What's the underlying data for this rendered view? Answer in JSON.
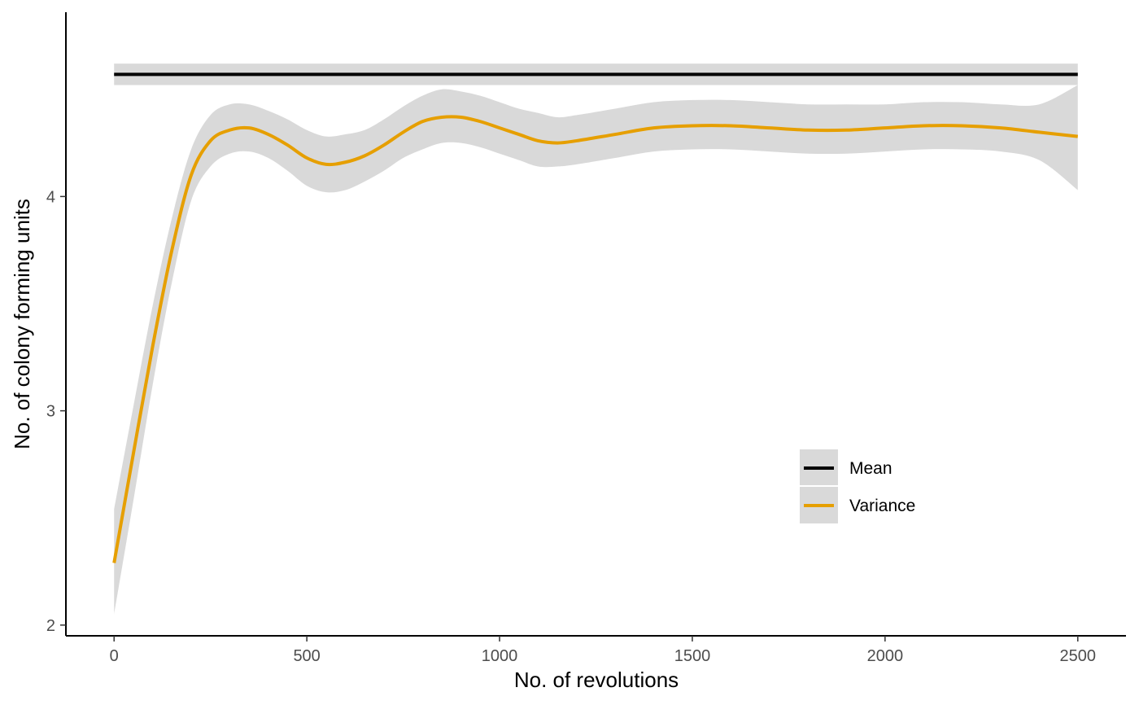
{
  "chart_data": {
    "type": "line",
    "xlabel": "No. of revolutions",
    "ylabel": "No. of colony forming units",
    "xlim": [
      -125,
      2625
    ],
    "ylim": [
      1.95,
      4.86
    ],
    "x_ticks": [
      0,
      500,
      1000,
      1500,
      2000,
      2500
    ],
    "y_ticks": [
      2,
      3,
      4
    ],
    "grid": false,
    "legend_position": "bottom-right",
    "series": [
      {
        "name": "Mean",
        "color": "#000000",
        "x": [
          0,
          2500
        ],
        "y": [
          4.57,
          4.57
        ],
        "ci_lower": [
          4.52,
          4.52
        ],
        "ci_upper": [
          4.62,
          4.62
        ]
      },
      {
        "name": "Variance",
        "color": "#E69F00",
        "x": [
          0,
          50,
          100,
          150,
          200,
          250,
          300,
          350,
          400,
          450,
          500,
          550,
          600,
          650,
          700,
          750,
          800,
          850,
          900,
          950,
          1000,
          1050,
          1100,
          1150,
          1200,
          1300,
          1400,
          1500,
          1600,
          1700,
          1800,
          1900,
          2000,
          2100,
          2200,
          2300,
          2400,
          2500
        ],
        "y": [
          2.29,
          2.8,
          3.3,
          3.75,
          4.1,
          4.26,
          4.31,
          4.32,
          4.29,
          4.24,
          4.18,
          4.15,
          4.16,
          4.19,
          4.24,
          4.3,
          4.35,
          4.37,
          4.37,
          4.35,
          4.32,
          4.29,
          4.26,
          4.25,
          4.26,
          4.29,
          4.32,
          4.33,
          4.33,
          4.32,
          4.31,
          4.31,
          4.32,
          4.33,
          4.33,
          4.32,
          4.3,
          4.28
        ],
        "ci_lower": [
          2.05,
          2.58,
          3.12,
          3.6,
          3.98,
          4.14,
          4.2,
          4.21,
          4.18,
          4.12,
          4.05,
          4.02,
          4.03,
          4.07,
          4.12,
          4.18,
          4.22,
          4.25,
          4.25,
          4.23,
          4.2,
          4.17,
          4.14,
          4.14,
          4.15,
          4.18,
          4.21,
          4.22,
          4.22,
          4.21,
          4.2,
          4.2,
          4.21,
          4.22,
          4.22,
          4.21,
          4.17,
          4.03
        ],
        "ci_upper": [
          2.54,
          3.02,
          3.49,
          3.9,
          4.22,
          4.38,
          4.43,
          4.43,
          4.4,
          4.36,
          4.31,
          4.28,
          4.29,
          4.31,
          4.36,
          4.42,
          4.47,
          4.5,
          4.49,
          4.47,
          4.44,
          4.41,
          4.39,
          4.37,
          4.38,
          4.41,
          4.44,
          4.45,
          4.45,
          4.44,
          4.43,
          4.43,
          4.43,
          4.44,
          4.44,
          4.43,
          4.43,
          4.52
        ]
      }
    ]
  }
}
